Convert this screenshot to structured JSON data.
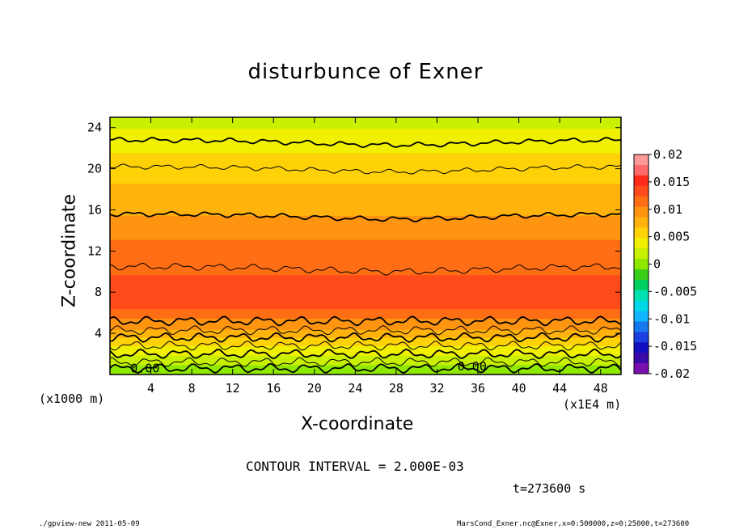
{
  "chart_data": {
    "type": "heatmap",
    "title": "disturbunce of Exner",
    "xlabel": "X-coordinate",
    "ylabel": "Z-coordinate",
    "x_unit_note": "(x1E4 m)",
    "z_unit_note": "(x1000 m)",
    "xlim": [
      0,
      50
    ],
    "ylim": [
      0,
      25
    ],
    "x_ticks": [
      "4",
      "8",
      "12",
      "16",
      "20",
      "24",
      "28",
      "32",
      "36",
      "40",
      "44",
      "48"
    ],
    "y_ticks": [
      "4",
      "8",
      "12",
      "16",
      "20",
      "24"
    ],
    "colorbar": {
      "min": -0.02,
      "max": 0.02,
      "tick_labels": [
        "0.02",
        "0.015",
        "0.01",
        "0.005",
        "0",
        "-0.005",
        "-0.01",
        "-0.015",
        "-0.02"
      ],
      "colors": [
        "#ff9a9a",
        "#ff6b6b",
        "#ff2a1a",
        "#ff4a1a",
        "#ff6e14",
        "#ff9410",
        "#ffb30c",
        "#ffd208",
        "#f0f000",
        "#c8f000",
        "#8ee800",
        "#3ccf18",
        "#00d060",
        "#00e0b0",
        "#00d8e8",
        "#10b4ff",
        "#1878f0",
        "#1c40e0",
        "#1010c0",
        "#3a0aa8",
        "#7a10b0"
      ]
    },
    "profile": [
      {
        "z": 0.0,
        "value": -0.0005
      },
      {
        "z": 1.0,
        "value": 0.001
      },
      {
        "z": 2.0,
        "value": 0.003
      },
      {
        "z": 3.0,
        "value": 0.005
      },
      {
        "z": 4.0,
        "value": 0.008
      },
      {
        "z": 5.2,
        "value": 0.01
      },
      {
        "z": 6.5,
        "value": 0.0125
      },
      {
        "z": 7.5,
        "value": 0.0135
      },
      {
        "z": 8.5,
        "value": 0.013
      },
      {
        "z": 10.3,
        "value": 0.012
      },
      {
        "z": 12.0,
        "value": 0.011
      },
      {
        "z": 14.0,
        "value": 0.01
      },
      {
        "z": 16.0,
        "value": 0.008
      },
      {
        "z": 18.0,
        "value": 0.007
      },
      {
        "z": 20.0,
        "value": 0.006
      },
      {
        "z": 22.5,
        "value": 0.004
      },
      {
        "z": 25.0,
        "value": 0.002
      }
    ],
    "contour_levels_z": [
      0.6,
      1.2,
      2.0,
      2.8,
      3.6,
      4.3,
      5.2,
      10.5,
      15.6,
      20.2,
      22.8
    ],
    "contour_labels": [
      {
        "text": "0.00",
        "x": 2.0,
        "z": 0.5
      },
      {
        "text": "0.00",
        "x": 34.0,
        "z": 0.7
      }
    ]
  },
  "annotations": {
    "contour_interval": "CONTOUR INTERVAL = 2.000E-03",
    "time": "t=273600 s",
    "footer_left": "./gpview-new   2011-05-09",
    "footer_right": "MarsCond_Exner.nc@Exner,x=0:500000,z=0:25000,t=273600"
  }
}
